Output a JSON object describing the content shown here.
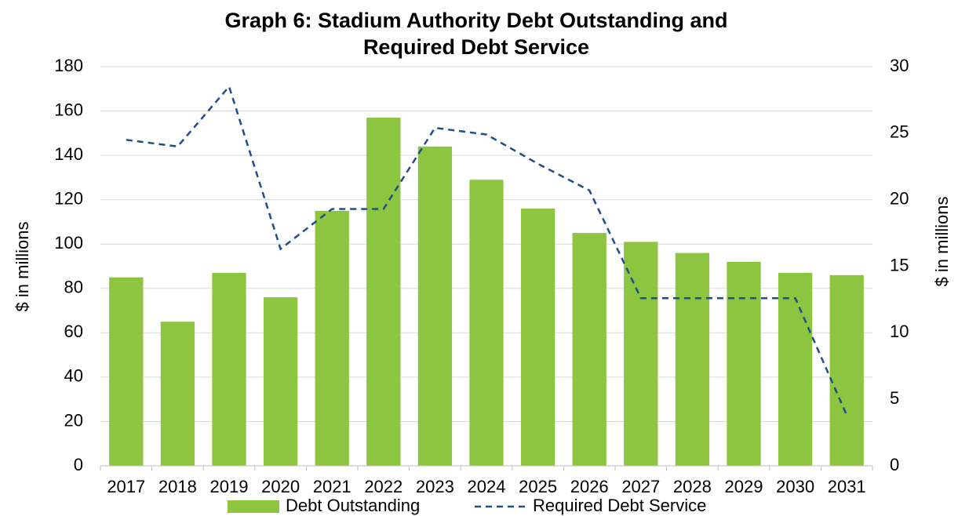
{
  "chart_data": {
    "type": "bar_line",
    "title": [
      "Graph 6: Stadium Authority Debt Outstanding and",
      "Required Debt Service"
    ],
    "ylabel": "$ in millions",
    "y2label": "$ in millions",
    "categories": [
      "2017",
      "2018",
      "2019",
      "2020",
      "2021",
      "2022",
      "2023",
      "2024",
      "2025",
      "2026",
      "2027",
      "2028",
      "2029",
      "2030",
      "2031"
    ],
    "series": [
      {
        "name": "Debt Outstanding",
        "type": "bar",
        "color": "#8dc540",
        "values": [
          85,
          65,
          87,
          76,
          115,
          157,
          144,
          129,
          116,
          105,
          101,
          96,
          92,
          87,
          86
        ]
      },
      {
        "name": "Required Debt Service",
        "type": "line",
        "axis": "y2",
        "color": "#1f4e8c",
        "dashed": true,
        "values": [
          24.5,
          24.0,
          28.5,
          16.3,
          19.3,
          19.3,
          25.4,
          24.9,
          22.7,
          20.7,
          12.6,
          12.6,
          12.6,
          12.6,
          3.8
        ]
      }
    ],
    "ylim": [
      0,
      180
    ],
    "yticks": [
      0,
      20,
      40,
      60,
      80,
      100,
      120,
      140,
      160,
      180
    ],
    "y2lim": [
      0,
      30
    ],
    "y2ticks": [
      0,
      5,
      10,
      15,
      20,
      25,
      30
    ],
    "grid": true,
    "legend": "bottom"
  }
}
